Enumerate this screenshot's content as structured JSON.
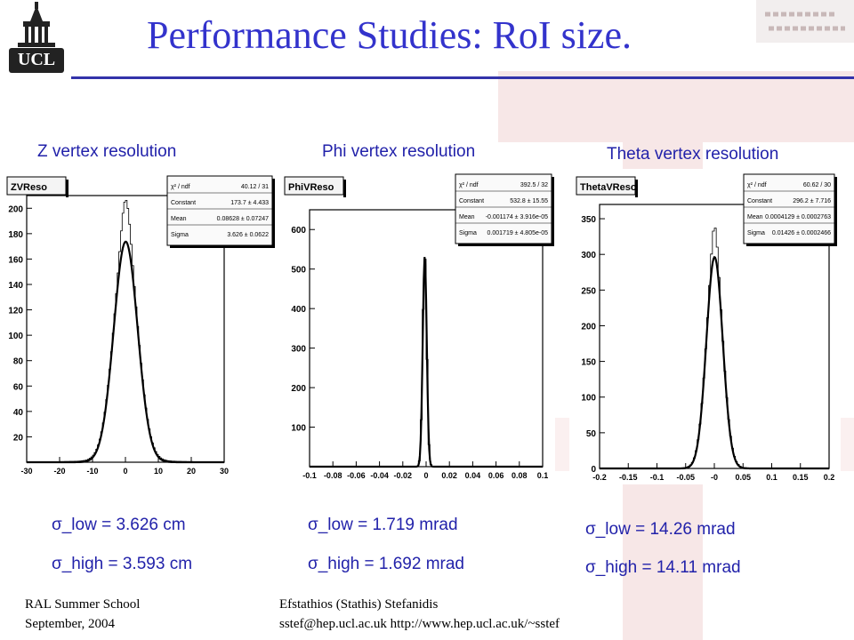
{
  "title": "Performance Studies: RoI size.",
  "logo_text": "UCL",
  "footer": {
    "left_line1": "RAL Summer School",
    "left_line2": "September,  2004",
    "right_line1": "Efstathios (Stathis) Stefanidis",
    "right_line2": "sstef@hep.ucl.ac.uk   http://www.hep.ucl.ac.uk/~sstef"
  },
  "chart_data": [
    {
      "type": "line",
      "caption": "Z vertex resolution",
      "histogram_name": "ZVReso",
      "xlim": [
        -30,
        30
      ],
      "ylim": [
        0,
        210
      ],
      "xticks": [
        "-30",
        "-20",
        "-10",
        "0",
        "10",
        "20",
        "30"
      ],
      "yticks": [
        "20",
        "40",
        "60",
        "80",
        "100",
        "120",
        "140",
        "160",
        "180",
        "200"
      ],
      "ytick_values": [
        20,
        40,
        60,
        80,
        100,
        120,
        140,
        160,
        180,
        200
      ],
      "xtick_values": [
        -30,
        -20,
        -10,
        0,
        10,
        20,
        30
      ],
      "fit": {
        "constant": 173.7,
        "mean": 0.08628,
        "sigma": 3.626
      },
      "peak_extra": 30,
      "stats": [
        {
          "label": "χ² / ndf",
          "value": "40.12 / 31"
        },
        {
          "label": "Constant",
          "value": "173.7 ± 4.433"
        },
        {
          "label": "Mean",
          "value": "0.08628 ± 0.07247"
        },
        {
          "label": "Sigma",
          "value": "3.626 ± 0.0622"
        }
      ],
      "sigma_low": "σ_low  = 3.626 cm",
      "sigma_high": "σ_high = 3.593 cm"
    },
    {
      "type": "line",
      "caption": "Phi vertex resolution",
      "histogram_name": "PhiVReso",
      "xlim": [
        -0.1,
        0.1
      ],
      "ylim": [
        0,
        650
      ],
      "xticks": [
        "-0.1",
        "-0.08",
        "-0.06",
        "-0.04",
        "-0.02",
        "0",
        "0.02",
        "0.04",
        "0.06",
        "0.08",
        "0.1"
      ],
      "xtick_values": [
        -0.1,
        -0.08,
        -0.06,
        -0.04,
        -0.02,
        0,
        0.02,
        0.04,
        0.06,
        0.08,
        0.1
      ],
      "yticks": [
        "100",
        "200",
        "300",
        "400",
        "500",
        "600"
      ],
      "ytick_values": [
        100,
        200,
        300,
        400,
        500,
        600
      ],
      "fit": {
        "constant": 532.8,
        "mean": -0.001174,
        "sigma": 0.001719
      },
      "peak_extra": 0,
      "stats": [
        {
          "label": "χ² / ndf",
          "value": "392.5 / 32"
        },
        {
          "label": "Constant",
          "value": "532.8 ± 15.55"
        },
        {
          "label": "Mean",
          "value": "-0.001174 ± 3.916e-05"
        },
        {
          "label": "Sigma",
          "value": "0.001719 ± 4.805e-05"
        }
      ],
      "sigma_low": "σ_low  = 1.719 mrad",
      "sigma_high": "σ_high = 1.692 mrad"
    },
    {
      "type": "line",
      "caption": "Theta vertex resolution",
      "histogram_name": "ThetaVReso",
      "xlim": [
        -0.2,
        0.2
      ],
      "ylim": [
        0,
        370
      ],
      "xticks": [
        "-0.2",
        "-0.15",
        "-0.1",
        "-0.05",
        "-0",
        "0.05",
        "0.1",
        "0.15",
        "0.2"
      ],
      "xtick_values": [
        -0.2,
        -0.15,
        -0.1,
        -0.05,
        0,
        0.05,
        0.1,
        0.15,
        0.2
      ],
      "yticks": [
        "0",
        "50",
        "100",
        "150",
        "200",
        "250",
        "300",
        "350"
      ],
      "ytick_values": [
        0,
        50,
        100,
        150,
        200,
        250,
        300,
        350
      ],
      "fit": {
        "constant": 296.2,
        "mean": 0.0004129,
        "sigma": 0.01426
      },
      "peak_extra": 40,
      "stats": [
        {
          "label": "χ² / ndf",
          "value": "60.62 / 30"
        },
        {
          "label": "Constant",
          "value": "296.2 ± 7.716"
        },
        {
          "label": "Mean",
          "value": "0.0004129 ± 0.0002763"
        },
        {
          "label": "Sigma",
          "value": "0.01426 ± 0.0002466"
        }
      ],
      "sigma_low": "σ_low  = 14.26 mrad",
      "sigma_high": "σ_high = 14.11 mrad"
    }
  ]
}
